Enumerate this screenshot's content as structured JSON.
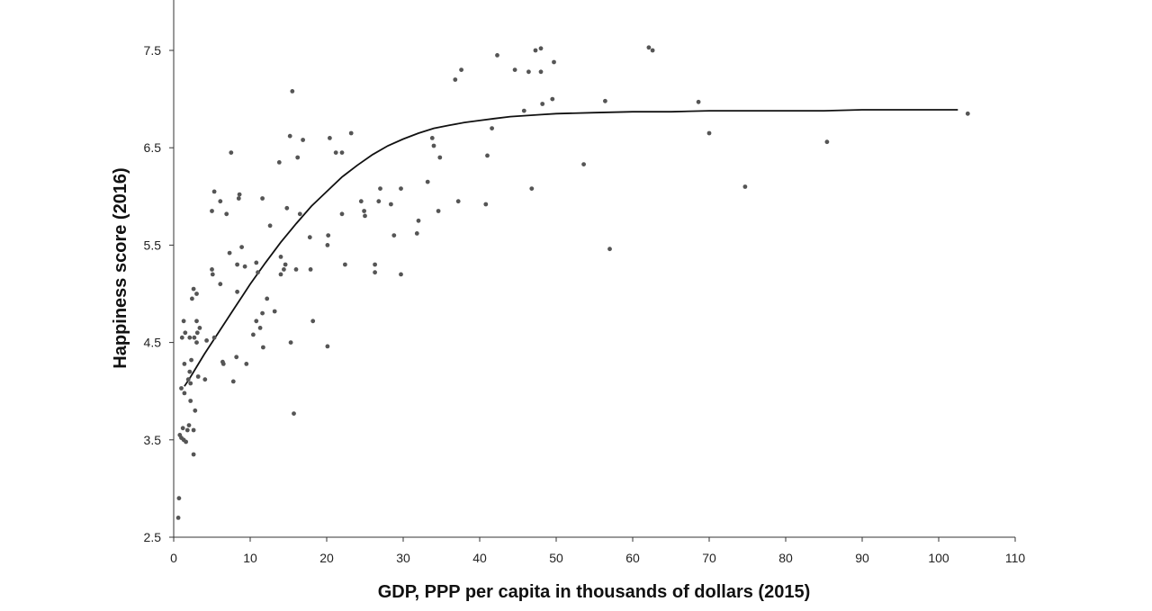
{
  "chart_data": {
    "type": "scatter",
    "title": "",
    "xlabel": "GDP, PPP per capita in thousands of dollars (2015)",
    "ylabel": "Happiness score (2016)",
    "xlim": [
      0,
      110
    ],
    "ylim": [
      2.5,
      7.9
    ],
    "x_ticks": [
      "0",
      "10",
      "20",
      "30",
      "40",
      "50",
      "60",
      "70",
      "80",
      "90",
      "100",
      "110"
    ],
    "y_ticks": [
      "2.5",
      "3.5",
      "4.5",
      "5.5",
      "6.5",
      "7.5"
    ],
    "x_tick_values": [
      0,
      10,
      20,
      30,
      40,
      50,
      60,
      70,
      80,
      90,
      100,
      110
    ],
    "y_tick_values": [
      2.5,
      3.5,
      4.5,
      5.5,
      6.5,
      7.5
    ],
    "grid": false,
    "legend": "none",
    "marker_color": "#555555",
    "line_color": "#111111",
    "points": [
      [
        0.6,
        2.7
      ],
      [
        0.7,
        2.9
      ],
      [
        0.8,
        3.55
      ],
      [
        1.0,
        3.52
      ],
      [
        1.3,
        3.5
      ],
      [
        1.6,
        3.48
      ],
      [
        1.2,
        3.62
      ],
      [
        1.8,
        3.6
      ],
      [
        2.0,
        3.65
      ],
      [
        2.6,
        3.6
      ],
      [
        2.6,
        3.35
      ],
      [
        2.8,
        3.8
      ],
      [
        2.2,
        3.9
      ],
      [
        1.4,
        3.98
      ],
      [
        1.0,
        4.03
      ],
      [
        2.2,
        4.08
      ],
      [
        1.9,
        4.12
      ],
      [
        2.1,
        4.2
      ],
      [
        1.4,
        4.28
      ],
      [
        2.3,
        4.32
      ],
      [
        3.2,
        4.15
      ],
      [
        3.0,
        4.5
      ],
      [
        2.1,
        4.55
      ],
      [
        2.7,
        4.55
      ],
      [
        1.1,
        4.55
      ],
      [
        1.5,
        4.6
      ],
      [
        3.1,
        4.6
      ],
      [
        3.4,
        4.65
      ],
      [
        1.3,
        4.72
      ],
      [
        3.0,
        4.72
      ],
      [
        2.4,
        4.95
      ],
      [
        3.0,
        5.0
      ],
      [
        2.6,
        5.05
      ],
      [
        4.1,
        4.12
      ],
      [
        4.3,
        4.52
      ],
      [
        5.3,
        4.55
      ],
      [
        5.0,
        5.25
      ],
      [
        5.1,
        5.2
      ],
      [
        6.1,
        5.1
      ],
      [
        6.4,
        4.3
      ],
      [
        6.5,
        4.28
      ],
      [
        5.0,
        5.85
      ],
      [
        5.3,
        6.05
      ],
      [
        6.1,
        5.95
      ],
      [
        6.9,
        5.82
      ],
      [
        7.3,
        5.42
      ],
      [
        7.5,
        6.45
      ],
      [
        7.8,
        4.1
      ],
      [
        8.2,
        4.35
      ],
      [
        8.3,
        5.02
      ],
      [
        8.3,
        5.3
      ],
      [
        8.5,
        5.98
      ],
      [
        8.6,
        6.02
      ],
      [
        8.9,
        5.48
      ],
      [
        9.3,
        5.28
      ],
      [
        9.5,
        4.28
      ],
      [
        10.4,
        4.58
      ],
      [
        10.8,
        5.32
      ],
      [
        11.0,
        5.22
      ],
      [
        10.8,
        4.72
      ],
      [
        11.3,
        4.65
      ],
      [
        11.7,
        4.45
      ],
      [
        11.6,
        4.8
      ],
      [
        11.6,
        5.98
      ],
      [
        12.2,
        4.95
      ],
      [
        12.6,
        5.7
      ],
      [
        13.2,
        4.82
      ],
      [
        13.8,
        6.35
      ],
      [
        14.0,
        5.38
      ],
      [
        14.0,
        5.2
      ],
      [
        14.4,
        5.25
      ],
      [
        14.6,
        5.3
      ],
      [
        14.8,
        5.88
      ],
      [
        15.2,
        6.62
      ],
      [
        15.3,
        4.5
      ],
      [
        15.5,
        7.08
      ],
      [
        15.7,
        3.77
      ],
      [
        16.0,
        5.25
      ],
      [
        16.2,
        6.4
      ],
      [
        16.5,
        5.82
      ],
      [
        16.9,
        6.58
      ],
      [
        17.8,
        5.58
      ],
      [
        17.9,
        5.25
      ],
      [
        18.2,
        4.72
      ],
      [
        20.1,
        5.5
      ],
      [
        20.2,
        5.6
      ],
      [
        20.1,
        4.46
      ],
      [
        20.4,
        6.6
      ],
      [
        21.2,
        6.45
      ],
      [
        22.0,
        6.45
      ],
      [
        22.0,
        5.82
      ],
      [
        22.4,
        5.3
      ],
      [
        23.2,
        6.65
      ],
      [
        24.5,
        5.95
      ],
      [
        24.9,
        5.85
      ],
      [
        25.0,
        5.8
      ],
      [
        26.3,
        5.3
      ],
      [
        26.3,
        5.22
      ],
      [
        26.8,
        5.95
      ],
      [
        27.0,
        6.08
      ],
      [
        28.4,
        5.92
      ],
      [
        28.8,
        5.6
      ],
      [
        29.7,
        6.08
      ],
      [
        29.7,
        5.2
      ],
      [
        31.8,
        5.62
      ],
      [
        32.0,
        5.75
      ],
      [
        33.2,
        6.15
      ],
      [
        33.8,
        6.6
      ],
      [
        34.0,
        6.52
      ],
      [
        34.8,
        6.4
      ],
      [
        34.6,
        5.85
      ],
      [
        36.8,
        7.2
      ],
      [
        37.2,
        5.95
      ],
      [
        37.6,
        7.3
      ],
      [
        40.8,
        5.92
      ],
      [
        41.0,
        6.42
      ],
      [
        41.6,
        6.7
      ],
      [
        42.3,
        7.45
      ],
      [
        44.6,
        7.3
      ],
      [
        45.8,
        6.88
      ],
      [
        46.4,
        7.28
      ],
      [
        46.8,
        6.08
      ],
      [
        47.3,
        7.5
      ],
      [
        48.0,
        7.28
      ],
      [
        48.0,
        7.52
      ],
      [
        48.2,
        6.95
      ],
      [
        49.5,
        7.0
      ],
      [
        49.7,
        7.38
      ],
      [
        53.6,
        6.33
      ],
      [
        56.4,
        6.98
      ],
      [
        57.0,
        5.46
      ],
      [
        62.1,
        7.53
      ],
      [
        62.6,
        7.5
      ],
      [
        68.6,
        6.97
      ],
      [
        70.0,
        6.65
      ],
      [
        74.7,
        6.1
      ],
      [
        85.4,
        6.56
      ],
      [
        103.8,
        6.85
      ]
    ],
    "trend_line": {
      "x": [
        1.4,
        2,
        3,
        4,
        5,
        6,
        7,
        8,
        9,
        10,
        12,
        14,
        16,
        18,
        20,
        22,
        24,
        26,
        28,
        30,
        32,
        34,
        36,
        38,
        40,
        42,
        44,
        46,
        48,
        50,
        55,
        60,
        65,
        70,
        75,
        80,
        85,
        90,
        95,
        100,
        102.5
      ],
      "y": [
        4.05,
        4.12,
        4.25,
        4.38,
        4.5,
        4.62,
        4.74,
        4.86,
        4.98,
        5.1,
        5.32,
        5.53,
        5.72,
        5.9,
        6.05,
        6.2,
        6.32,
        6.43,
        6.52,
        6.59,
        6.65,
        6.7,
        6.73,
        6.76,
        6.78,
        6.8,
        6.82,
        6.83,
        6.84,
        6.85,
        6.86,
        6.87,
        6.87,
        6.88,
        6.88,
        6.88,
        6.88,
        6.89,
        6.89,
        6.89,
        6.89
      ]
    }
  }
}
